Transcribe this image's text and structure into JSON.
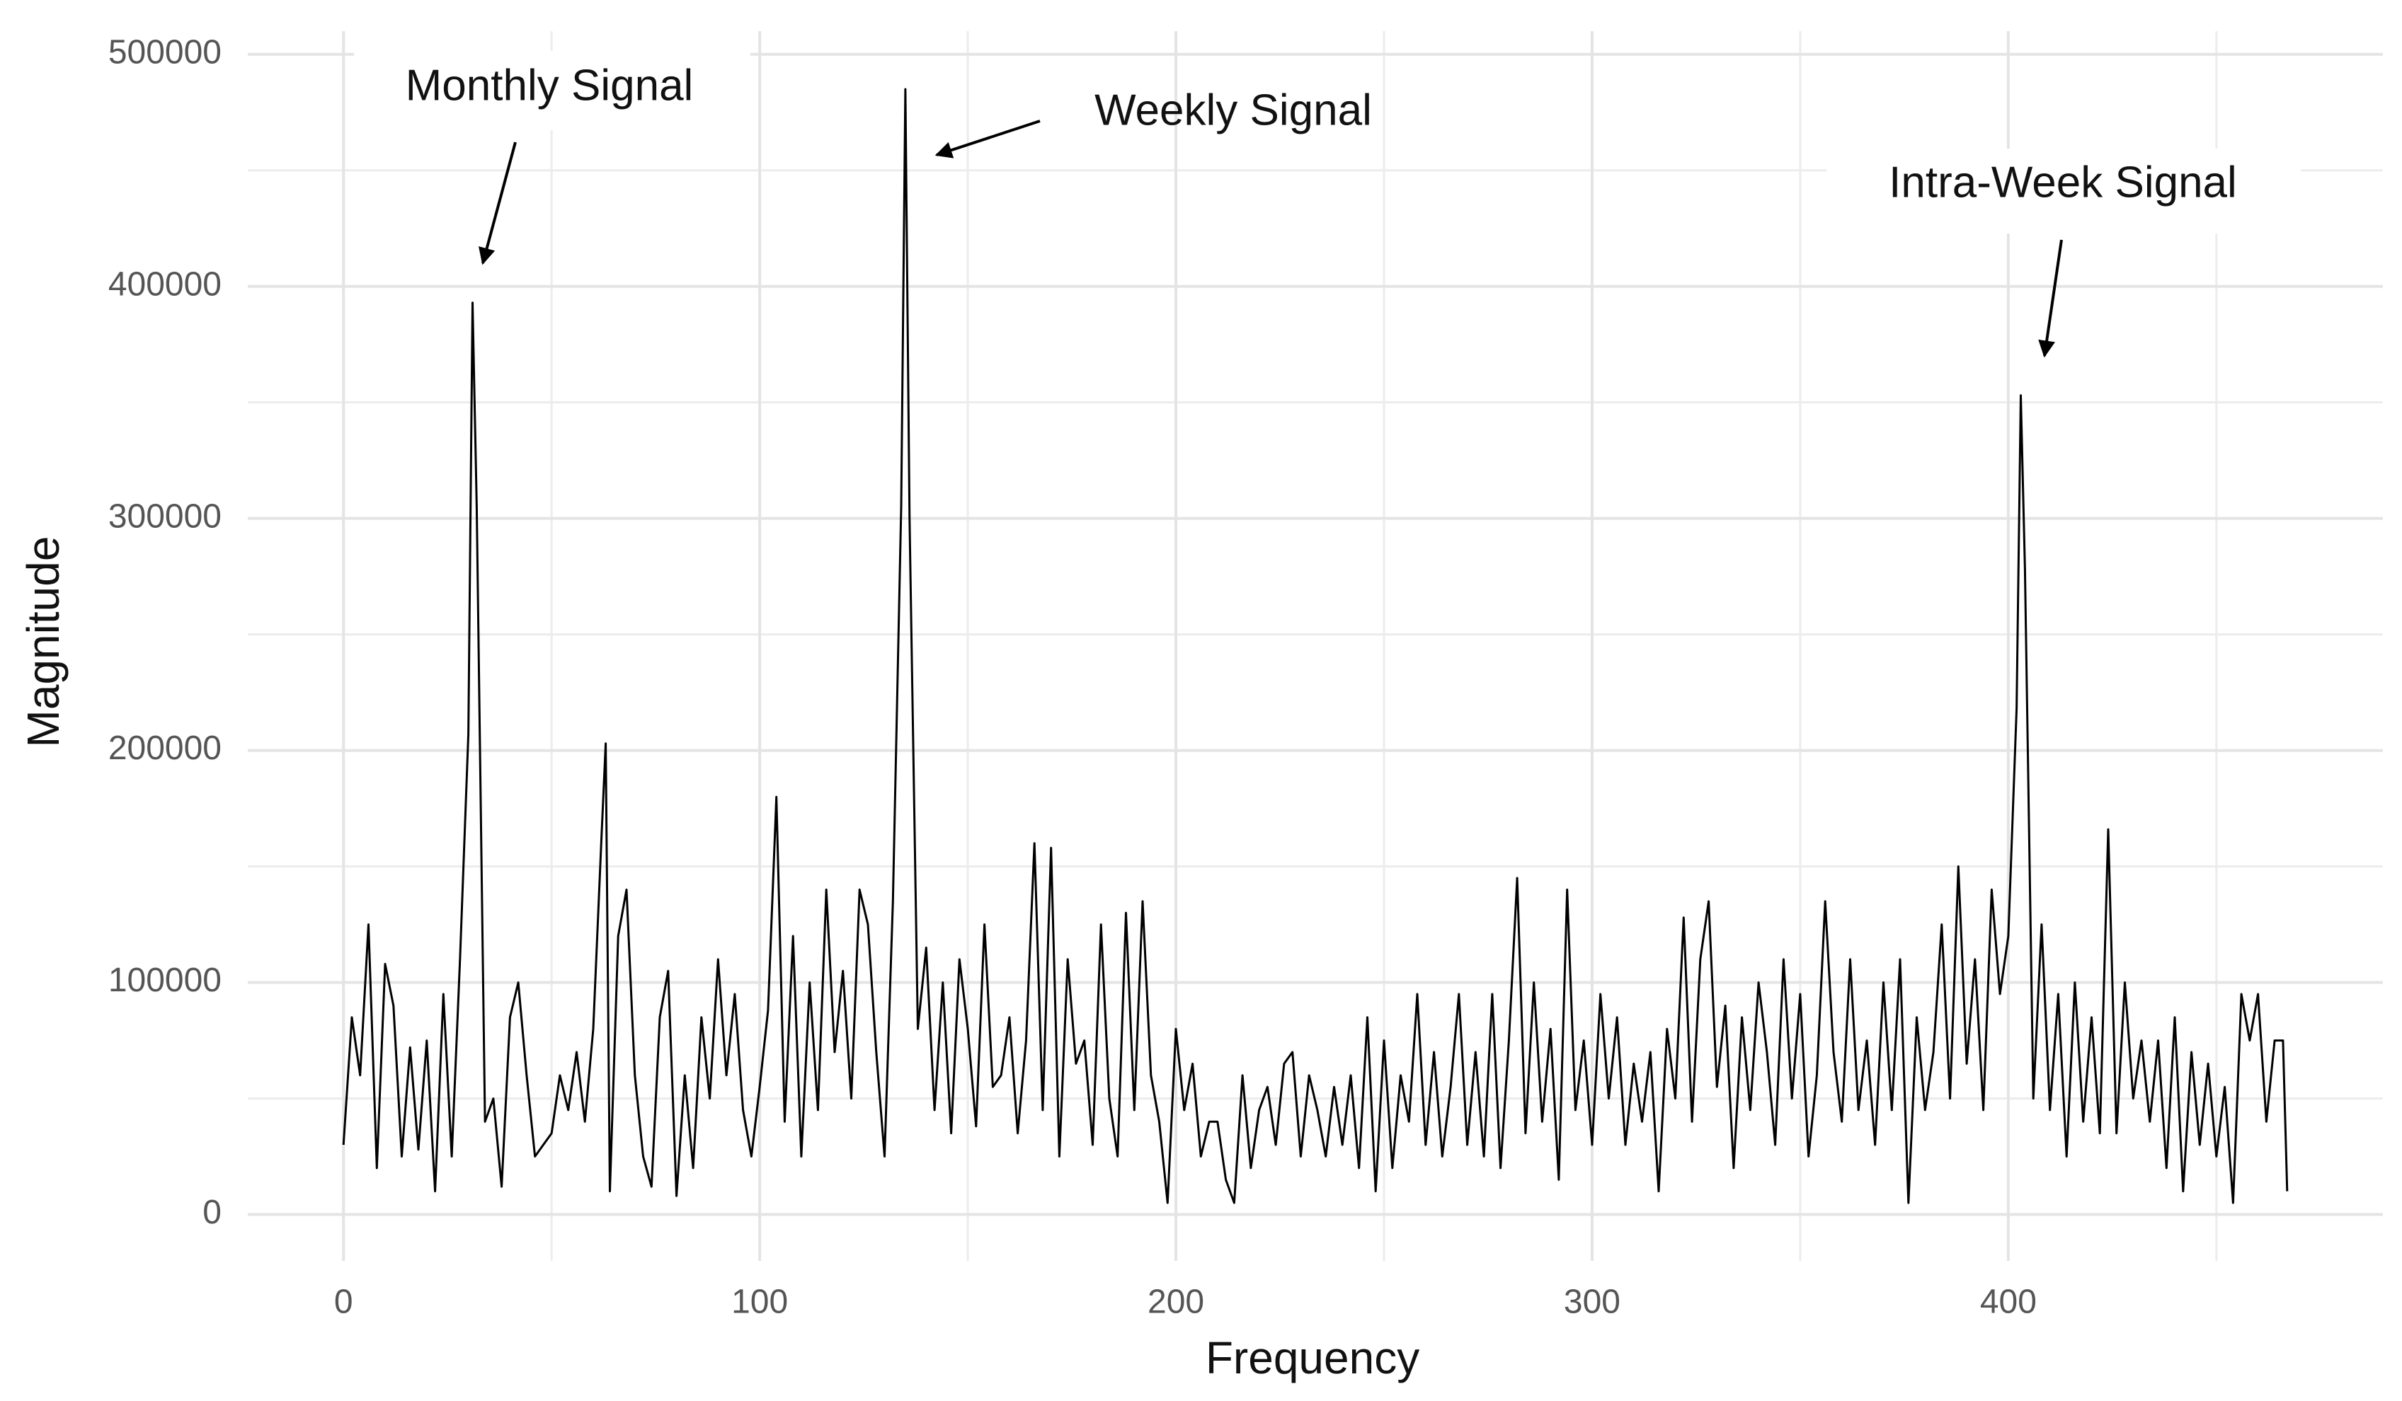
{
  "chart_data": {
    "type": "line",
    "xlabel": "Frequency",
    "ylabel": "Magnitude",
    "annotations": [
      "Monthly Signal",
      "Weekly Signal",
      "Intra-Week Signal"
    ],
    "color": "#000000",
    "x": [
      0,
      2,
      4,
      6,
      8,
      10,
      12,
      14,
      16,
      18,
      20,
      22,
      24,
      26,
      28,
      30,
      31,
      32,
      34,
      36,
      38,
      40,
      42,
      44,
      46,
      48,
      50,
      52,
      54,
      56,
      58,
      60,
      62,
      63,
      64,
      66,
      68,
      70,
      72,
      74,
      76,
      78,
      80,
      82,
      84,
      86,
      88,
      90,
      92,
      94,
      96,
      98,
      100,
      102,
      104,
      106,
      108,
      110,
      112,
      114,
      116,
      118,
      120,
      122,
      124,
      126,
      128,
      130,
      132,
      134,
      135,
      136,
      138,
      140,
      142,
      144,
      146,
      148,
      150,
      152,
      154,
      156,
      158,
      160,
      162,
      164,
      166,
      168,
      170,
      172,
      174,
      176,
      178,
      180,
      182,
      184,
      186,
      188,
      190,
      192,
      194,
      196,
      198,
      200,
      202,
      204,
      206,
      208,
      210,
      212,
      214,
      216,
      218,
      220,
      222,
      224,
      226,
      228,
      230,
      232,
      234,
      236,
      238,
      240,
      242,
      244,
      246,
      248,
      250,
      252,
      254,
      256,
      258,
      260,
      262,
      264,
      266,
      268,
      270,
      272,
      274,
      276,
      278,
      280,
      282,
      284,
      286,
      288,
      290,
      292,
      294,
      296,
      298,
      300,
      302,
      304,
      306,
      308,
      310,
      312,
      314,
      316,
      318,
      320,
      322,
      324,
      326,
      328,
      330,
      332,
      334,
      336,
      338,
      340,
      342,
      344,
      346,
      348,
      350,
      352,
      354,
      356,
      358,
      360,
      362,
      364,
      366,
      368,
      370,
      372,
      374,
      376,
      378,
      380,
      382,
      384,
      386,
      388,
      390,
      392,
      394,
      396,
      398,
      400,
      402,
      403,
      404,
      406,
      408,
      410,
      412,
      414,
      416,
      418,
      420,
      422,
      424,
      426,
      428,
      430,
      432,
      434,
      436,
      438,
      440,
      442,
      444,
      446,
      448,
      450,
      452,
      454,
      456,
      458,
      460,
      462,
      464,
      466,
      467
    ],
    "values": [
      30000,
      85000,
      60000,
      125000,
      20000,
      108000,
      90000,
      25000,
      72000,
      28000,
      75000,
      10000,
      95000,
      25000,
      110000,
      207000,
      393000,
      305000,
      40000,
      50000,
      12000,
      85000,
      100000,
      60000,
      25000,
      30000,
      35000,
      60000,
      45000,
      70000,
      40000,
      80000,
      163000,
      203000,
      10000,
      120000,
      140000,
      60000,
      25000,
      12000,
      85000,
      105000,
      8000,
      60000,
      20000,
      85000,
      50000,
      110000,
      60000,
      95000,
      45000,
      25000,
      55000,
      88000,
      180000,
      40000,
      120000,
      25000,
      100000,
      45000,
      140000,
      70000,
      105000,
      50000,
      140000,
      125000,
      70000,
      25000,
      135000,
      305000,
      485000,
      300000,
      80000,
      115000,
      45000,
      100000,
      35000,
      110000,
      80000,
      38000,
      125000,
      55000,
      60000,
      85000,
      35000,
      75000,
      160000,
      45000,
      158000,
      25000,
      110000,
      65000,
      75000,
      30000,
      125000,
      50000,
      25000,
      130000,
      45000,
      135000,
      60000,
      40000,
      5000,
      80000,
      45000,
      65000,
      25000,
      40000,
      40000,
      15000,
      5000,
      60000,
      20000,
      45000,
      55000,
      30000,
      65000,
      70000,
      25000,
      60000,
      45000,
      25000,
      55000,
      30000,
      60000,
      20000,
      85000,
      10000,
      75000,
      20000,
      60000,
      40000,
      95000,
      30000,
      70000,
      25000,
      55000,
      95000,
      30000,
      70000,
      25000,
      95000,
      20000,
      75000,
      145000,
      35000,
      100000,
      40000,
      80000,
      15000,
      140000,
      45000,
      75000,
      30000,
      95000,
      50000,
      85000,
      30000,
      65000,
      40000,
      70000,
      10000,
      80000,
      50000,
      128000,
      40000,
      110000,
      135000,
      55000,
      90000,
      20000,
      85000,
      45000,
      100000,
      70000,
      30000,
      110000,
      50000,
      95000,
      25000,
      60000,
      135000,
      70000,
      40000,
      110000,
      45000,
      75000,
      30000,
      100000,
      45000,
      110000,
      5000,
      85000,
      45000,
      70000,
      125000,
      50000,
      150000,
      65000,
      110000,
      45000,
      140000,
      95000,
      120000,
      218000,
      353000,
      278000,
      50000,
      125000,
      45000,
      95000,
      25000,
      100000,
      40000,
      85000,
      35000,
      166000,
      35000,
      100000,
      50000,
      75000,
      40000,
      75000,
      20000,
      85000,
      10000,
      70000,
      30000,
      65000,
      25000,
      55000,
      5000,
      95000,
      75000,
      95000,
      40000,
      75000,
      75000,
      10000
    ],
    "xlim": [
      -23,
      490
    ],
    "ylim": [
      -20000,
      510000
    ],
    "xticks": [
      0,
      100,
      200,
      300,
      400
    ],
    "yticks": [
      0,
      100000,
      200000,
      300000,
      400000,
      500000
    ],
    "x_minor_ticks": [
      50,
      150,
      250,
      350,
      450
    ],
    "y_minor_ticks": [
      50000,
      150000,
      250000,
      350000,
      450000
    ],
    "grid": true
  }
}
